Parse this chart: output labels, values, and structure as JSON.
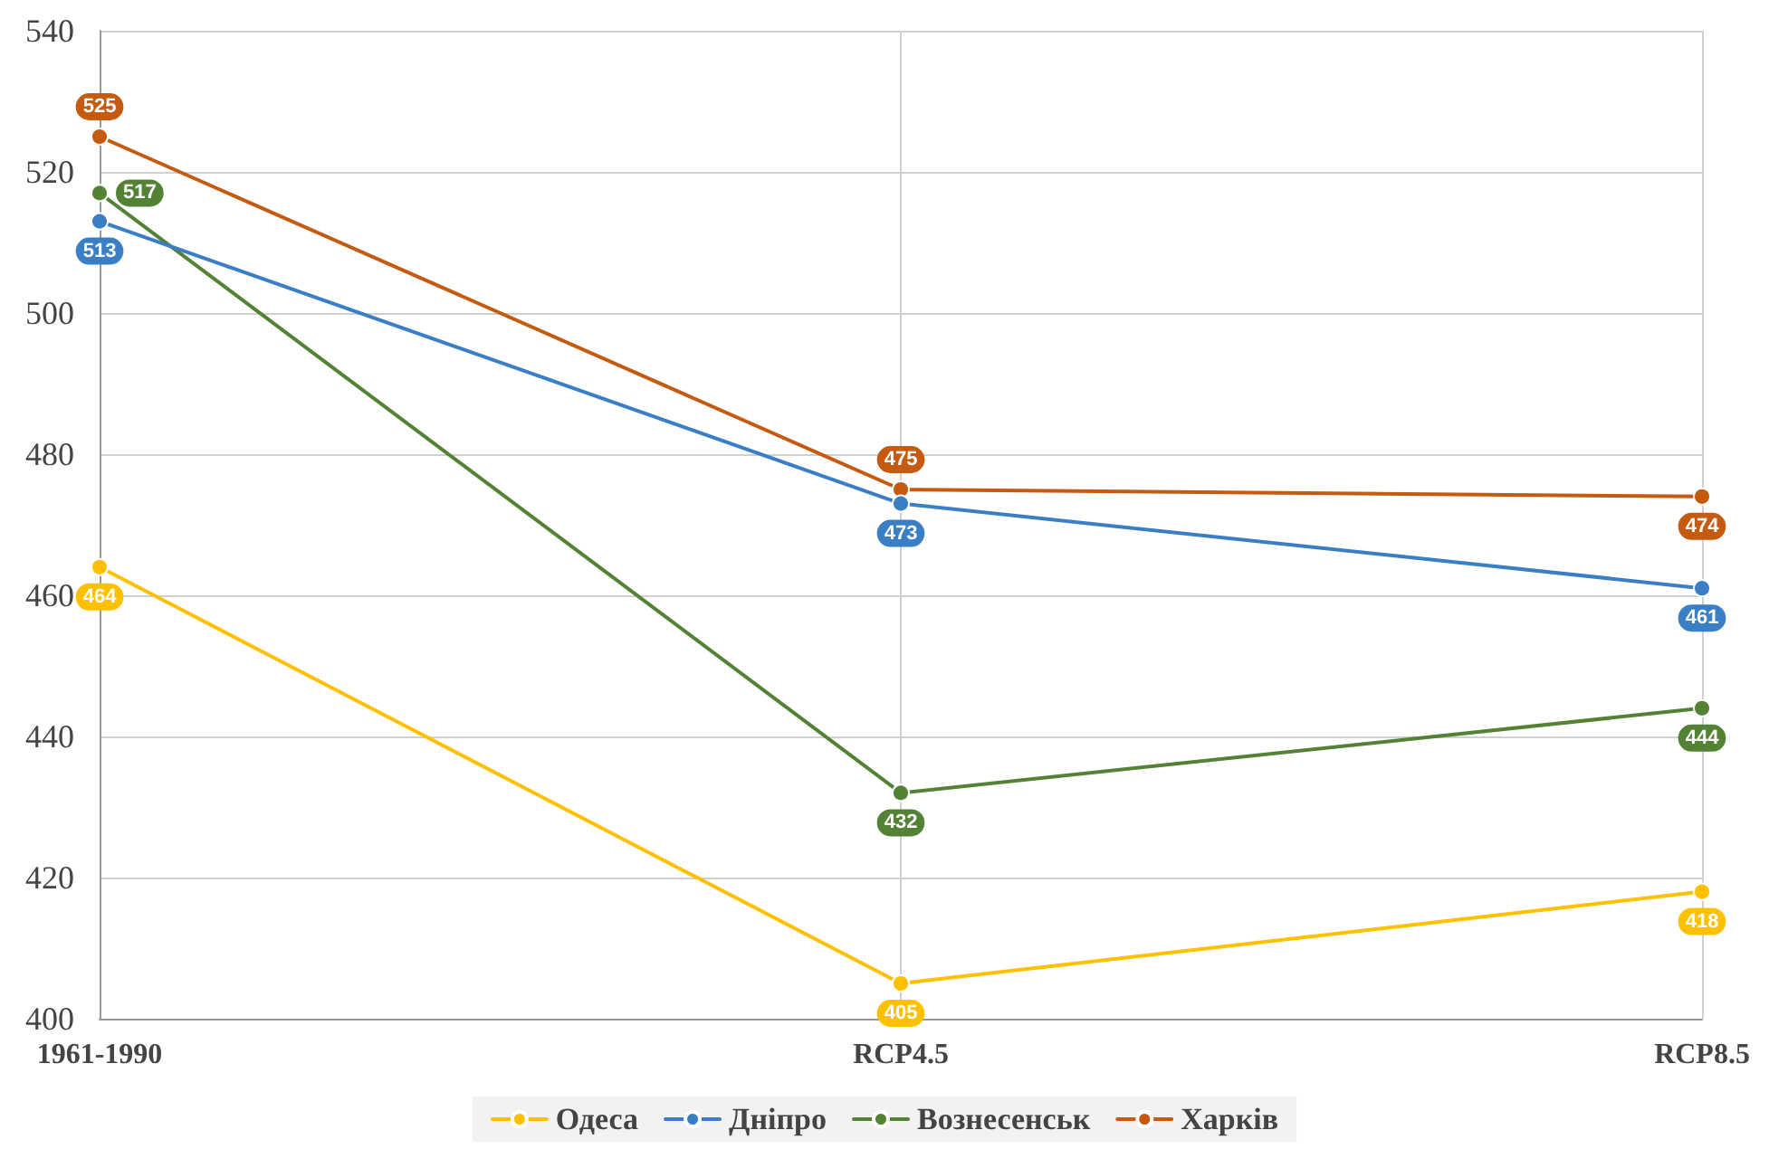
{
  "chart_data": {
    "type": "line",
    "categories": [
      "1961-1990",
      "RCP4.5",
      "RCP8.5"
    ],
    "series": [
      {
        "name": "Одеса",
        "color": "#ffc000",
        "values": [
          464,
          405,
          418
        ]
      },
      {
        "name": "Дніпро",
        "color": "#3a7ec6",
        "values": [
          513,
          473,
          461
        ]
      },
      {
        "name": "Вознесенськ",
        "color": "#548235",
        "values": [
          517,
          432,
          444
        ]
      },
      {
        "name": "Харків",
        "color": "#c55a11",
        "values": [
          525,
          475,
          474
        ]
      }
    ],
    "ylim": [
      400,
      540
    ],
    "yticks": [
      400,
      420,
      440,
      460,
      480,
      500,
      520,
      540
    ],
    "grid": true,
    "legend": "bottom",
    "marker": "circle",
    "line_style": "solid",
    "data_labels": true
  }
}
